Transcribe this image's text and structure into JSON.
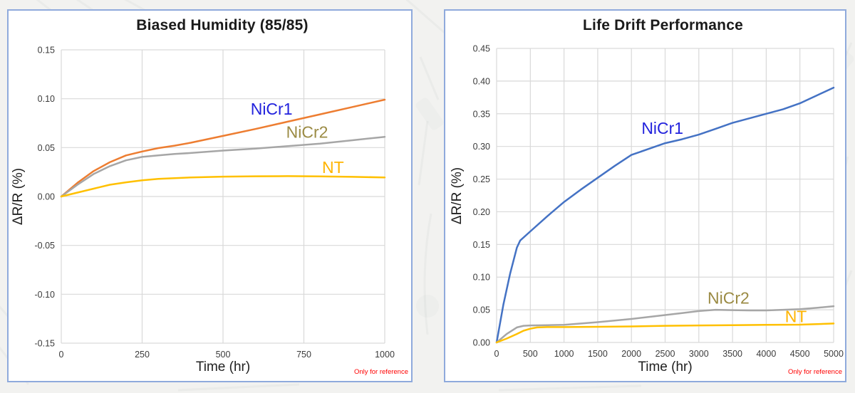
{
  "colors": {
    "panel_border": "#8FAADC",
    "panel_background": "#FFFFFF",
    "page_background": "#F2F2F0",
    "gridline": "#D9D9D9",
    "tick_text": "#3B3B3B",
    "title_text": "#1A1A1A",
    "footnote_red": "#FF0000"
  },
  "chart_data": [
    {
      "type": "line",
      "title": "Biased Humidity (85/85)",
      "x_axis_title": "Time (hr)",
      "y_axis_title": "ΔR/R (%)",
      "footnote": "Only for reference",
      "grid": true,
      "legend": "inline-labels",
      "xlim": [
        0,
        1000
      ],
      "ylim": [
        -0.15,
        0.15
      ],
      "x_ticks": [
        0,
        250,
        500,
        750,
        1000
      ],
      "y_ticks": [
        "0.15",
        "0.10",
        "0.05",
        "0.00",
        "-0.05",
        "-0.10",
        "-0.15"
      ],
      "series": [
        {
          "name": "NiCr1",
          "line_color": "#ED7D31",
          "label_color": "#2222DD",
          "label_at": [
            650,
            0.0895
          ],
          "points": [
            [
              0,
              0
            ],
            [
              50,
              0.014
            ],
            [
              100,
              0.026
            ],
            [
              150,
              0.035
            ],
            [
              200,
              0.042
            ],
            [
              250,
              0.046
            ],
            [
              300,
              0.0495
            ],
            [
              350,
              0.052
            ],
            [
              400,
              0.055
            ],
            [
              500,
              0.062
            ],
            [
              600,
              0.069
            ],
            [
              700,
              0.0765
            ],
            [
              800,
              0.084
            ],
            [
              900,
              0.0915
            ],
            [
              1000,
              0.099
            ]
          ]
        },
        {
          "name": "NiCr2",
          "line_color": "#A6A6A6",
          "label_color": "#9B8B44",
          "label_at": [
            760,
            0.066
          ],
          "points": [
            [
              0,
              0
            ],
            [
              50,
              0.012
            ],
            [
              100,
              0.023
            ],
            [
              150,
              0.031
            ],
            [
              200,
              0.037
            ],
            [
              250,
              0.0405
            ],
            [
              300,
              0.042
            ],
            [
              350,
              0.0435
            ],
            [
              400,
              0.0445
            ],
            [
              500,
              0.047
            ],
            [
              600,
              0.049
            ],
            [
              700,
              0.0515
            ],
            [
              800,
              0.054
            ],
            [
              900,
              0.0575
            ],
            [
              1000,
              0.061
            ]
          ]
        },
        {
          "name": "NT",
          "line_color": "#FFC000",
          "label_color": "#FFB400",
          "label_at": [
            840,
            0.03
          ],
          "points": [
            [
              0,
              0
            ],
            [
              50,
              0.004
            ],
            [
              100,
              0.008
            ],
            [
              150,
              0.012
            ],
            [
              200,
              0.0145
            ],
            [
              250,
              0.0165
            ],
            [
              300,
              0.018
            ],
            [
              400,
              0.0195
            ],
            [
              500,
              0.0203
            ],
            [
              600,
              0.0207
            ],
            [
              700,
              0.0208
            ],
            [
              800,
              0.0206
            ],
            [
              900,
              0.0201
            ],
            [
              1000,
              0.0195
            ]
          ]
        }
      ]
    },
    {
      "type": "line",
      "title": "Life Drift Performance",
      "x_axis_title": "Time (hr)",
      "y_axis_title": "ΔR/R (%)",
      "footnote": "Only for reference",
      "grid": true,
      "legend": "inline-labels",
      "xlim": [
        0,
        5000
      ],
      "ylim": [
        0,
        0.45
      ],
      "x_ticks": [
        0,
        500,
        1000,
        1500,
        2000,
        2500,
        3000,
        3500,
        4000,
        4500,
        5000
      ],
      "y_ticks": [
        "0.45",
        "0.40",
        "0.35",
        "0.30",
        "0.25",
        "0.20",
        "0.15",
        "0.10",
        "0.05",
        "0.00"
      ],
      "series": [
        {
          "name": "NiCr1",
          "line_color": "#4472C4",
          "label_color": "#2222DD",
          "label_at": [
            2460,
            0.328
          ],
          "points": [
            [
              0,
              0
            ],
            [
              100,
              0.058
            ],
            [
              200,
              0.105
            ],
            [
              300,
              0.145
            ],
            [
              350,
              0.156
            ],
            [
              500,
              0.17
            ],
            [
              750,
              0.193
            ],
            [
              1000,
              0.215
            ],
            [
              1250,
              0.234
            ],
            [
              1500,
              0.252
            ],
            [
              1750,
              0.27
            ],
            [
              2000,
              0.287
            ],
            [
              2250,
              0.296
            ],
            [
              2500,
              0.305
            ],
            [
              2750,
              0.311
            ],
            [
              3000,
              0.318
            ],
            [
              3250,
              0.327
            ],
            [
              3500,
              0.336
            ],
            [
              3750,
              0.343
            ],
            [
              4000,
              0.35
            ],
            [
              4250,
              0.357
            ],
            [
              4500,
              0.366
            ],
            [
              4750,
              0.378
            ],
            [
              5000,
              0.39
            ]
          ]
        },
        {
          "name": "NiCr2",
          "line_color": "#A6A6A6",
          "label_color": "#9B8B44",
          "label_at": [
            3440,
            0.068
          ],
          "points": [
            [
              0,
              0
            ],
            [
              150,
              0.013
            ],
            [
              300,
              0.023
            ],
            [
              400,
              0.0255
            ],
            [
              500,
              0.026
            ],
            [
              750,
              0.0265
            ],
            [
              1000,
              0.027
            ],
            [
              1250,
              0.029
            ],
            [
              1500,
              0.031
            ],
            [
              1750,
              0.0335
            ],
            [
              2000,
              0.036
            ],
            [
              2250,
              0.039
            ],
            [
              2500,
              0.042
            ],
            [
              2750,
              0.045
            ],
            [
              3000,
              0.048
            ],
            [
              3250,
              0.05
            ],
            [
              3500,
              0.0495
            ],
            [
              3750,
              0.049
            ],
            [
              4000,
              0.049
            ],
            [
              4250,
              0.05
            ],
            [
              4500,
              0.051
            ],
            [
              4750,
              0.053
            ],
            [
              5000,
              0.0555
            ]
          ]
        },
        {
          "name": "NT",
          "line_color": "#FFC000",
          "label_color": "#FFB400",
          "label_at": [
            4440,
            0.04
          ],
          "points": [
            [
              0,
              0
            ],
            [
              150,
              0.006
            ],
            [
              300,
              0.013
            ],
            [
              400,
              0.018
            ],
            [
              500,
              0.021
            ],
            [
              600,
              0.023
            ],
            [
              750,
              0.0235
            ],
            [
              1000,
              0.0235
            ],
            [
              1500,
              0.024
            ],
            [
              2000,
              0.0245
            ],
            [
              2500,
              0.0255
            ],
            [
              3000,
              0.026
            ],
            [
              3500,
              0.0265
            ],
            [
              4000,
              0.027
            ],
            [
              4500,
              0.0272
            ],
            [
              5000,
              0.029
            ]
          ]
        }
      ]
    }
  ]
}
